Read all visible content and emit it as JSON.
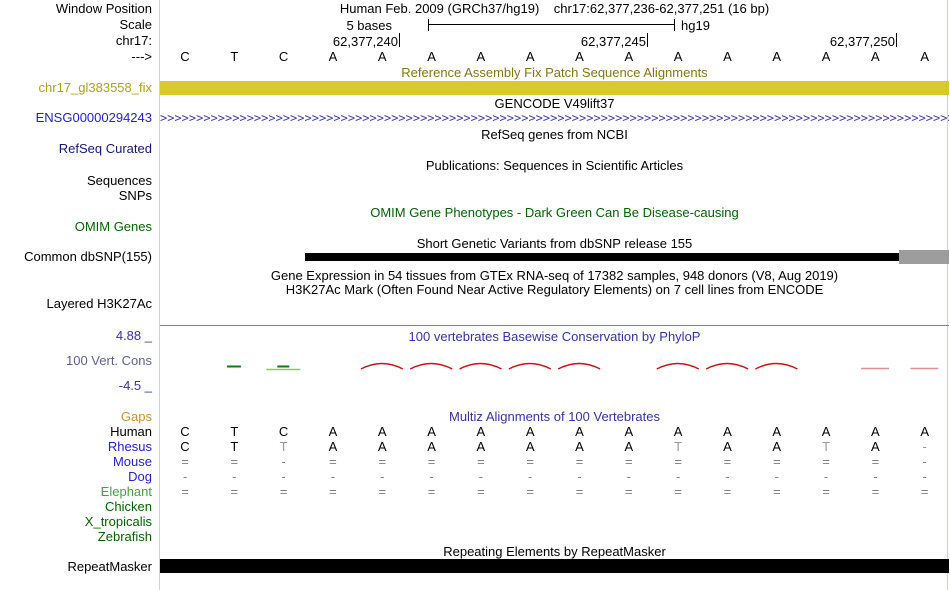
{
  "header": {
    "window_position_label": "Window Position",
    "assembly": "Human Feb. 2009 (GRCh37/hg19)",
    "position": "chr17:62,377,236-62,377,251 (16 bp)",
    "scale_row_label": "Scale",
    "scale_length_label": "5 bases",
    "genome_label": "hg19",
    "chrom_label": "chr17:",
    "strand_label": "--->",
    "coordinates": [
      {
        "label": "62,377,240"
      },
      {
        "label": "62,377,245"
      },
      {
        "label": "62,377,250"
      }
    ]
  },
  "sequence": [
    "C",
    "T",
    "C",
    "A",
    "A",
    "A",
    "A",
    "A",
    "A",
    "A",
    "A",
    "A",
    "A",
    "A",
    "A",
    "A"
  ],
  "tracks": {
    "fix_patch": {
      "label": "chr17_gl383558_fix",
      "title": "Reference Assembly Fix Patch Sequence Alignments"
    },
    "gencode": {
      "label": "ENSG00000294243",
      "title": "GENCODE V49lift37",
      "strand_char": ">"
    },
    "refseq": {
      "label": "RefSeq Curated",
      "title": "RefSeq genes from NCBI"
    },
    "publications": {
      "label_line1": "Sequences",
      "label_line2": "SNPs",
      "title": "Publications: Sequences in Scientific Articles"
    },
    "omim": {
      "label": "OMIM Genes",
      "title": "OMIM Gene Phenotypes - Dark Green Can Be Disease-causing"
    },
    "dbsnp": {
      "label": "Common dbSNP(155)",
      "title": "Short Genetic Variants from dbSNP release 155"
    },
    "gtex": {
      "title": "Gene Expression in 54 tissues from GTEx RNA-seq of 17382 samples, 948 donors (V8, Aug 2019)"
    },
    "h3k27ac": {
      "label": "Layered H3K27Ac",
      "title": "H3K27Ac Mark (Often Found Near Active Regulatory Elements) on 7 cell lines from ENCODE"
    },
    "phylop": {
      "label": "100 Vert. Cons",
      "max_label": "4.88 _",
      "min_label": "-4.5 _",
      "title": "100 vertebrates Basewise Conservation by PhyloP"
    },
    "multiz": {
      "title": "Multiz Alignments of 100 Vertebrates",
      "gaps_label": "Gaps",
      "rows": [
        {
          "species": "Human",
          "cells": [
            "C",
            "T",
            "C",
            "A",
            "A",
            "A",
            "A",
            "A",
            "A",
            "A",
            "A",
            "A",
            "A",
            "A",
            "A",
            "A"
          ],
          "dim": []
        },
        {
          "species": "Rhesus",
          "cells": [
            "C",
            "T",
            "T",
            "A",
            "A",
            "A",
            "A",
            "A",
            "A",
            "A",
            "T",
            "A",
            "A",
            "T",
            "A",
            "-"
          ],
          "dim": [
            2,
            10,
            13,
            15
          ]
        },
        {
          "species": "Mouse",
          "cells": [
            "=",
            "=",
            "-",
            "=",
            "=",
            "=",
            "=",
            "=",
            "=",
            "=",
            "=",
            "=",
            "=",
            "=",
            "=",
            "-"
          ],
          "dim": "all"
        },
        {
          "species": "Dog",
          "cells": [
            "-",
            "-",
            "-",
            "-",
            "-",
            "-",
            "-",
            "-",
            "-",
            "-",
            "-",
            "-",
            "-",
            "-",
            "-",
            "-"
          ],
          "dim": "all"
        },
        {
          "species": "Elephant",
          "cells": [
            "=",
            "=",
            "=",
            "=",
            "=",
            "=",
            "=",
            "=",
            "=",
            "=",
            "=",
            "=",
            "=",
            "=",
            "=",
            "="
          ],
          "dim": "all"
        },
        {
          "species": "Chicken",
          "cells": []
        },
        {
          "species": "X_tropicalis",
          "cells": []
        },
        {
          "species": "Zebrafish",
          "cells": []
        }
      ]
    },
    "repeatmasker": {
      "label": "RepeatMasker",
      "title": "Repeating Elements by RepeatMasker"
    }
  },
  "phylop_marks": {
    "red_arc_columns": [
      5,
      6,
      7,
      8,
      9,
      11,
      12,
      13
    ],
    "red_dash_columns": [
      15,
      16
    ],
    "green_marks": [
      {
        "column": 2,
        "width": 14,
        "shade": "dark"
      },
      {
        "column": 3,
        "width": 34,
        "shade": "light"
      },
      {
        "column": 3,
        "width": 12,
        "shade": "dark"
      }
    ]
  },
  "colors": {
    "fix_patch_bar": "#d8ca2a",
    "dbsnp_bar": "#000000",
    "dbsnp_gray_box": "#9d9d9d",
    "repeat_bar": "#000000",
    "phylop_negative": "#cc1111",
    "phylop_negative_faint": "#e09090",
    "phylop_positive_dark": "#157a15",
    "phylop_positive_light": "#8fc94f",
    "title_blue": "#3333aa",
    "omim_green": "#006400",
    "gaps_orange": "#c9912d",
    "guide_line": "#bcd9ec"
  }
}
